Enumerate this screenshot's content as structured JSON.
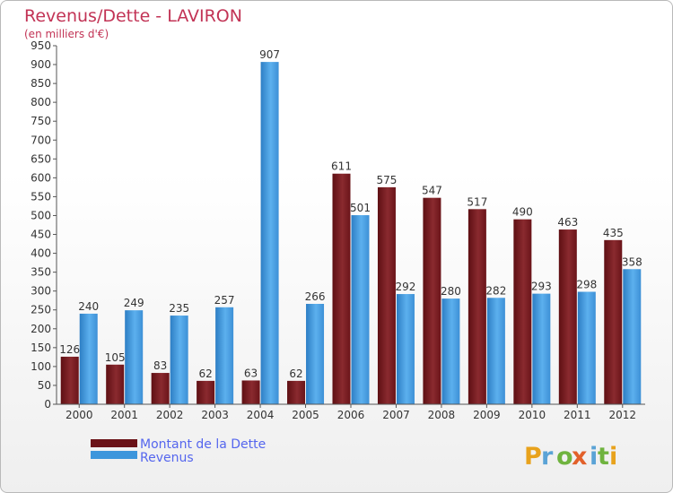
{
  "chart_data": {
    "type": "bar",
    "title": "Revenus/Dette - LAVIRON",
    "subtitle": "(en milliers d'€)",
    "categories": [
      "2000",
      "2001",
      "2002",
      "2003",
      "2004",
      "2005",
      "2006",
      "2007",
      "2008",
      "2009",
      "2010",
      "2011",
      "2012"
    ],
    "series": [
      {
        "name": "Montant de la Dette",
        "color": "#7b1a1f",
        "values": [
          126,
          105,
          83,
          62,
          63,
          62,
          611,
          575,
          547,
          517,
          490,
          463,
          435
        ]
      },
      {
        "name": "Revenus",
        "color": "#3d96dc",
        "values": [
          240,
          249,
          235,
          257,
          907,
          266,
          501,
          292,
          280,
          282,
          293,
          298,
          358
        ]
      }
    ],
    "ylim": [
      0,
      950
    ],
    "yticks": [
      0,
      50,
      100,
      150,
      200,
      250,
      300,
      350,
      400,
      450,
      500,
      550,
      600,
      650,
      700,
      750,
      800,
      850,
      900,
      950
    ],
    "grid": false,
    "legend": "bottom-left"
  },
  "logo": {
    "letters": [
      "P",
      "r",
      "o",
      "x",
      "i",
      "t",
      "i"
    ],
    "colors": [
      "#e8a21c",
      "#5aa3d6",
      "#6fb33f",
      "#e2602a",
      "#5aa3d6",
      "#6fb33f",
      "#e8a21c"
    ]
  }
}
